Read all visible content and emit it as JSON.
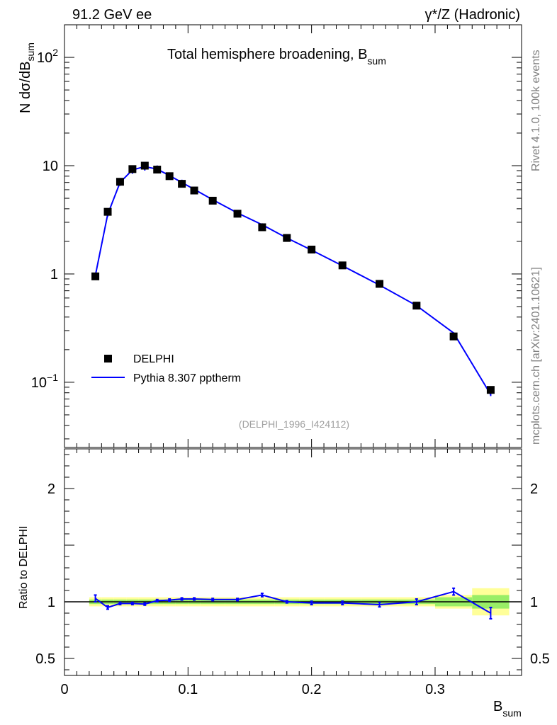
{
  "header": {
    "left": "91.2 GeV ee",
    "right": "γ*/Z (Hadronic)"
  },
  "side_text": {
    "top": "Rivet 4.1.0,  100k events",
    "bottom": "mcplots.cern.ch [arXiv:2401.10621]"
  },
  "chart_data": {
    "type": "scatter",
    "title": "Total hemisphere broadening, B",
    "title_sub": "sum",
    "xlabel": "B",
    "xlabel_sub": "sum",
    "ylabel": "N  dσ/dB",
    "ylabel_sub": "sum",
    "ratio_ylabel": "Ratio to DELPHI",
    "analysis_ref": "(DELPHI_1996_I424112)",
    "xlim": [
      0,
      0.37
    ],
    "ylim": [
      0.025,
      200
    ],
    "ratio_ylim": [
      0.35,
      2.35
    ],
    "x_ticks": [
      "0",
      "0.1",
      "0.2",
      "0.3"
    ],
    "x_tick_values": [
      0,
      0.1,
      0.2,
      0.3
    ],
    "y_ticks": [
      {
        "value": 100,
        "base": "10",
        "exp": "2"
      },
      {
        "value": 10,
        "base": "10",
        "exp": ""
      },
      {
        "value": 1,
        "base": "1",
        "exp": ""
      },
      {
        "value": 0.1,
        "base": "10",
        "exp": "−1"
      }
    ],
    "ratio_ticks": [
      {
        "value": 2,
        "label": "2"
      },
      {
        "value": 1,
        "label": "1"
      },
      {
        "value": 0.5,
        "label": "0.5"
      }
    ],
    "legend": {
      "position": "bottom-left",
      "data_label": "DELPHI",
      "mc_label": "Pythia 8.307 pptherm"
    },
    "series": [
      {
        "name": "DELPHI",
        "x": [
          0.025,
          0.035,
          0.045,
          0.055,
          0.065,
          0.075,
          0.085,
          0.095,
          0.105,
          0.12,
          0.14,
          0.16,
          0.18,
          0.2,
          0.225,
          0.255,
          0.285,
          0.315,
          0.345
        ],
        "x_low": [
          0.02,
          0.03,
          0.04,
          0.05,
          0.06,
          0.07,
          0.08,
          0.09,
          0.1,
          0.11,
          0.13,
          0.15,
          0.17,
          0.19,
          0.21,
          0.24,
          0.27,
          0.3,
          0.33
        ],
        "x_high": [
          0.03,
          0.04,
          0.05,
          0.06,
          0.07,
          0.08,
          0.09,
          0.1,
          0.11,
          0.13,
          0.15,
          0.17,
          0.19,
          0.21,
          0.24,
          0.27,
          0.3,
          0.33,
          0.36
        ],
        "y": [
          0.95,
          3.75,
          7.1,
          9.3,
          10.0,
          9.2,
          8.0,
          6.8,
          5.9,
          4.75,
          3.6,
          2.7,
          2.15,
          1.68,
          1.2,
          0.81,
          0.51,
          0.265,
          0.085
        ],
        "rel_err": [
          0.03,
          0.03,
          0.03,
          0.03,
          0.03,
          0.03,
          0.03,
          0.03,
          0.03,
          0.03,
          0.03,
          0.03,
          0.03,
          0.03,
          0.03,
          0.03,
          0.03,
          0.04,
          0.06
        ]
      },
      {
        "name": "Pythia 8.307 pptherm",
        "x": [
          0.025,
          0.035,
          0.045,
          0.055,
          0.065,
          0.075,
          0.085,
          0.095,
          0.105,
          0.12,
          0.14,
          0.16,
          0.18,
          0.2,
          0.225,
          0.255,
          0.285,
          0.315,
          0.345
        ],
        "y": [
          0.97,
          3.56,
          7.0,
          9.15,
          9.8,
          9.3,
          8.1,
          7.0,
          6.05,
          4.85,
          3.66,
          2.85,
          2.15,
          1.66,
          1.19,
          0.79,
          0.51,
          0.285,
          0.077
        ],
        "err": [
          0.04,
          0.05,
          0.07,
          0.08,
          0.08,
          0.08,
          0.07,
          0.06,
          0.05,
          0.04,
          0.03,
          0.03,
          0.02,
          0.02,
          0.015,
          0.01,
          0.008,
          0.008,
          0.006
        ],
        "color": "#0000ff"
      }
    ],
    "ratio": {
      "x": [
        0.025,
        0.035,
        0.045,
        0.055,
        0.065,
        0.075,
        0.085,
        0.095,
        0.105,
        0.12,
        0.14,
        0.16,
        0.18,
        0.2,
        0.225,
        0.255,
        0.285,
        0.315,
        0.345
      ],
      "y": [
        1.03,
        0.95,
        0.985,
        0.985,
        0.98,
        1.01,
        1.015,
        1.025,
        1.025,
        1.02,
        1.02,
        1.06,
        1.0,
        0.99,
        0.99,
        0.975,
        1.0,
        1.09,
        0.9
      ],
      "err": [
        0.03,
        0.015,
        0.01,
        0.01,
        0.01,
        0.01,
        0.01,
        0.01,
        0.01,
        0.01,
        0.01,
        0.015,
        0.01,
        0.015,
        0.015,
        0.02,
        0.025,
        0.03,
        0.05
      ],
      "band_stat": [
        0.02,
        0.02,
        0.02,
        0.02,
        0.02,
        0.02,
        0.02,
        0.02,
        0.02,
        0.02,
        0.02,
        0.02,
        0.02,
        0.02,
        0.02,
        0.02,
        0.02,
        0.04,
        0.06
      ],
      "band_total": [
        0.04,
        0.04,
        0.04,
        0.04,
        0.04,
        0.04,
        0.04,
        0.04,
        0.04,
        0.04,
        0.04,
        0.04,
        0.04,
        0.04,
        0.04,
        0.04,
        0.04,
        0.06,
        0.12
      ]
    },
    "colors": {
      "mc": "#0000ff",
      "data": "#000000",
      "band_inner": "#99ee66",
      "band_outer": "#ffff99"
    }
  }
}
